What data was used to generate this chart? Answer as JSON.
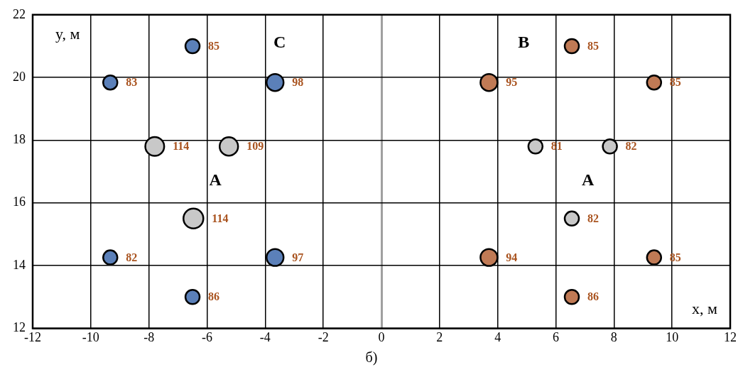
{
  "chart_data": {
    "type": "bubble",
    "xlabel": "x, м",
    "ylabel": "y, м",
    "xlim": [
      -12,
      12
    ],
    "xticks": [
      -12,
      -10,
      -8,
      -6,
      -4,
      -2,
      0,
      2,
      4,
      6,
      8,
      10,
      12
    ],
    "ylim": [
      12,
      22
    ],
    "yticks": [
      12,
      14,
      16,
      18,
      20,
      22
    ],
    "grid": true,
    "legend": false,
    "series": [
      {
        "color": "#5b80b9",
        "x": [
          -6.5,
          -9.33,
          -3.66,
          -9.33,
          -3.66,
          -6.5
        ],
        "values": [
          21.0,
          19.84,
          19.84,
          14.26,
          14.26,
          13.0
        ],
        "sizes": [
          0.51,
          0.51,
          0.73,
          0.51,
          0.73,
          0.51
        ]
      },
      {
        "color": "#c8c8c8",
        "x": [
          -7.8,
          -5.25,
          -6.47,
          5.3,
          7.86,
          6.55
        ],
        "values": [
          17.8,
          17.8,
          15.5,
          17.8,
          17.8,
          15.5
        ],
        "sizes": [
          0.9,
          0.86,
          1,
          0.51,
          0.51,
          0.51
        ]
      },
      {
        "color": "#c07a55",
        "x": [
          6.55,
          3.7,
          9.38,
          3.7,
          9.38,
          6.55
        ],
        "values": [
          21.0,
          19.84,
          19.84,
          14.26,
          14.26,
          13.0
        ],
        "sizes": [
          0.51,
          0.73,
          0.51,
          0.73,
          0.51,
          0.51
        ]
      }
    ],
    "annotations": [
      "C",
      "B",
      "A",
      "A",
      "б)",
      {
        "text": "85",
        "x": -6.5,
        "y": 21.0
      },
      {
        "text": "83",
        "x": -9.33,
        "y": 19.84
      },
      {
        "text": "98",
        "x": -3.66,
        "y": 19.84
      },
      {
        "text": "82",
        "x": -9.33,
        "y": 14.26
      },
      {
        "text": "97",
        "x": -3.66,
        "y": 14.26
      },
      {
        "text": "86",
        "x": -6.5,
        "y": 13.0
      },
      {
        "text": "114",
        "x": -7.8,
        "y": 17.8
      },
      {
        "text": "109",
        "x": -5.25,
        "y": 17.8
      },
      {
        "text": "114",
        "x": -6.47,
        "y": 15.5
      },
      {
        "text": "81",
        "x": 5.3,
        "y": 17.8
      },
      {
        "text": "82",
        "x": 7.86,
        "y": 17.8
      },
      {
        "text": "82",
        "x": 6.55,
        "y": 15.5
      },
      {
        "text": "85",
        "x": 6.55,
        "y": 21.0
      },
      {
        "text": "95",
        "x": 3.7,
        "y": 19.84
      },
      {
        "text": "85",
        "x": 9.38,
        "y": 19.84
      },
      {
        "text": "94",
        "x": 3.7,
        "y": 14.26
      },
      {
        "text": "85",
        "x": 9.38,
        "y": 14.26
      },
      {
        "text": "86",
        "x": 6.55,
        "y": 13.0
      }
    ]
  }
}
